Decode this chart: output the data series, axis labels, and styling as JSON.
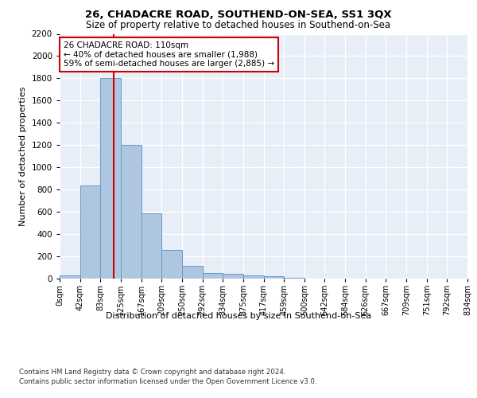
{
  "title": "26, CHADACRE ROAD, SOUTHEND-ON-SEA, SS1 3QX",
  "subtitle": "Size of property relative to detached houses in Southend-on-Sea",
  "xlabel": "Distribution of detached houses by size in Southend-on-Sea",
  "ylabel": "Number of detached properties",
  "bar_values": [
    30,
    840,
    1800,
    1200,
    590,
    260,
    115,
    50,
    45,
    30,
    18,
    5,
    2,
    1,
    0,
    0,
    0,
    0,
    0
  ],
  "bin_labels": [
    "0sqm",
    "42sqm",
    "83sqm",
    "125sqm",
    "167sqm",
    "209sqm",
    "250sqm",
    "292sqm",
    "334sqm",
    "375sqm",
    "417sqm",
    "459sqm",
    "500sqm",
    "542sqm",
    "584sqm",
    "626sqm",
    "667sqm",
    "709sqm",
    "751sqm",
    "792sqm",
    "834sqm"
  ],
  "bar_color": "#aec6e0",
  "bar_edge_color": "#6699cc",
  "vline_color": "#cc0000",
  "annotation_text": "26 CHADACRE ROAD: 110sqm\n← 40% of detached houses are smaller (1,988)\n59% of semi-detached houses are larger (2,885) →",
  "annotation_box_color": "#ffffff",
  "annotation_border_color": "#cc0000",
  "ylim": [
    0,
    2200
  ],
  "yticks": [
    0,
    200,
    400,
    600,
    800,
    1000,
    1200,
    1400,
    1600,
    1800,
    2000,
    2200
  ],
  "bg_color": "#e8eef8",
  "footer_line1": "Contains HM Land Registry data © Crown copyright and database right 2024.",
  "footer_line2": "Contains public sector information licensed under the Open Government Licence v3.0."
}
